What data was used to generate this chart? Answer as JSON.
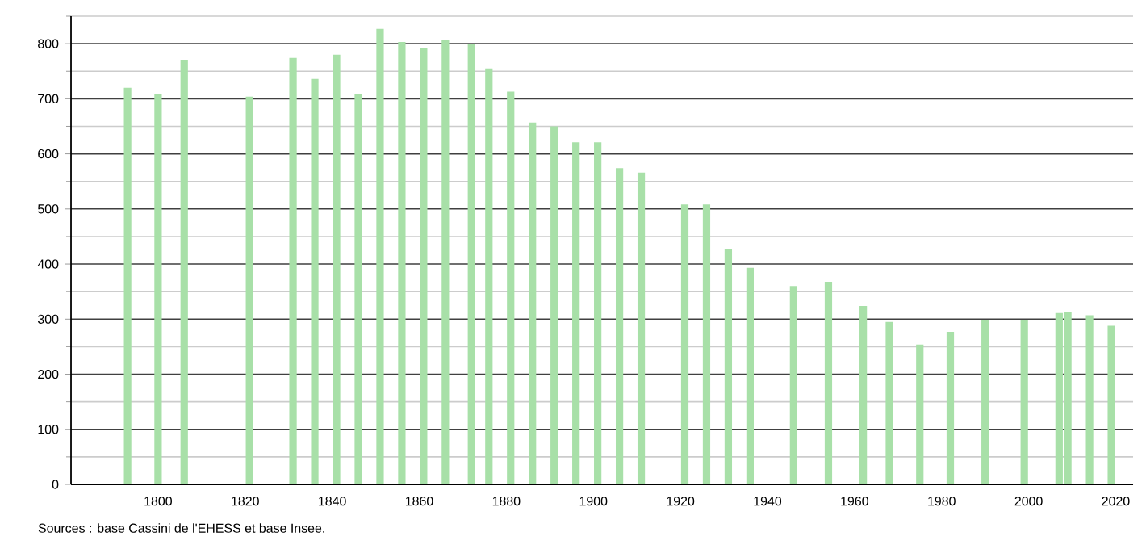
{
  "chart_data": {
    "type": "bar",
    "color": "#a8e0a8",
    "x": [
      1793,
      1800,
      1806,
      1821,
      1831,
      1836,
      1841,
      1846,
      1851,
      1856,
      1861,
      1866,
      1872,
      1876,
      1881,
      1886,
      1891,
      1896,
      1901,
      1906,
      1911,
      1921,
      1926,
      1931,
      1936,
      1946,
      1954,
      1962,
      1968,
      1975,
      1982,
      1990,
      1999,
      2007,
      2009,
      2014,
      2019
    ],
    "values": [
      720,
      709,
      771,
      704,
      774,
      736,
      780,
      709,
      827,
      803,
      792,
      807,
      799,
      755,
      713,
      657,
      650,
      621,
      621,
      574,
      566,
      508,
      508,
      427,
      393,
      360,
      368,
      324,
      295,
      254,
      277,
      299,
      299,
      311,
      312,
      307,
      288
    ],
    "xlim": [
      1780,
      2024
    ],
    "xticks": [
      1800,
      1820,
      1840,
      1860,
      1880,
      1900,
      1920,
      1940,
      1960,
      1980,
      2000,
      2020
    ],
    "ylim": [
      0,
      850
    ],
    "yticks": [
      0,
      {
        "value": 50,
        "label": null
      },
      100,
      {
        "value": 150,
        "label": null
      },
      200,
      {
        "value": 250,
        "label": null
      },
      300,
      {
        "value": 350,
        "label": null
      },
      400,
      {
        "value": 450,
        "label": null
      },
      500,
      {
        "value": 550,
        "label": null
      },
      600,
      {
        "value": 650,
        "label": null
      },
      700,
      {
        "value": 750,
        "label": null
      },
      800,
      {
        "value": 850,
        "label": null
      }
    ],
    "grid": "y",
    "annotations": [
      "Sources : base Cassini de l'EHESS et base Insee."
    ]
  }
}
